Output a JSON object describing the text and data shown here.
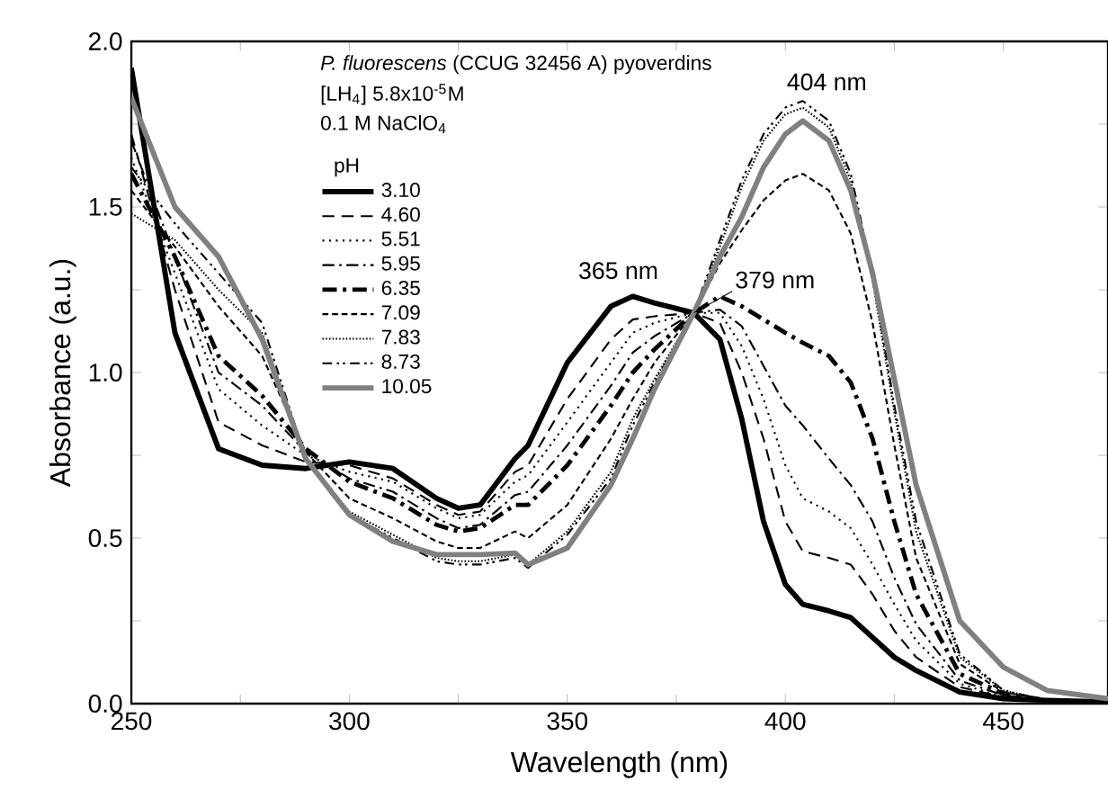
{
  "chart_data": {
    "type": "line",
    "xlabel": "Wavelength (nm)",
    "ylabel": "Absorbance (a.u.)",
    "legend_title": "pH",
    "legend": "top left",
    "grid": false,
    "xlim": [
      250,
      474
    ],
    "ylim": [
      0,
      2.0
    ],
    "xticks": [
      250,
      {
        "value": 275,
        "label": null
      },
      300,
      {
        "value": 325,
        "label": null
      },
      350,
      {
        "value": 375,
        "label": null
      },
      400,
      {
        "value": 425,
        "label": null
      },
      450
    ],
    "yticks": [
      {
        "value": 0,
        "label": "0.0"
      },
      {
        "value": 0.25,
        "label": null
      },
      {
        "value": 0.5,
        "label": "0.5"
      },
      {
        "value": 0.75,
        "label": null
      },
      {
        "value": 1.0,
        "label": "1.0"
      },
      {
        "value": 1.25,
        "label": null
      },
      {
        "value": 1.5,
        "label": "1.5"
      },
      {
        "value": 1.75,
        "label": null
      },
      {
        "value": 2.0,
        "label": "2.0"
      }
    ],
    "x": [
      250,
      260,
      270,
      280,
      290,
      300,
      310,
      320,
      325,
      330,
      338,
      341,
      350,
      360,
      365,
      370,
      379,
      385,
      390,
      395,
      400,
      404,
      410,
      415,
      420,
      425,
      430,
      440,
      450,
      460,
      474
    ],
    "series": [
      {
        "name": "3.10",
        "color": "#000000",
        "line_style": "solid",
        "values": [
          1.92,
          1.12,
          0.77,
          0.72,
          0.71,
          0.73,
          0.71,
          0.62,
          0.59,
          0.6,
          0.74,
          0.78,
          1.03,
          1.2,
          1.23,
          1.21,
          1.18,
          1.1,
          0.86,
          0.55,
          0.36,
          0.3,
          0.28,
          0.26,
          0.2,
          0.14,
          0.1,
          0.035,
          0.015,
          0.01,
          0.005
        ]
      },
      {
        "name": "4.60",
        "color": "#000000",
        "line_style": "dashed",
        "values": [
          1.72,
          1.25,
          0.85,
          0.78,
          0.73,
          0.72,
          0.68,
          0.6,
          0.57,
          0.58,
          0.7,
          0.72,
          0.92,
          1.1,
          1.16,
          1.17,
          1.18,
          1.15,
          1.0,
          0.8,
          0.55,
          0.46,
          0.44,
          0.42,
          0.33,
          0.22,
          0.14,
          0.05,
          0.02,
          0.01,
          0.005
        ]
      },
      {
        "name": "5.51",
        "color": "#000000",
        "line_style": "dotted",
        "values": [
          1.65,
          1.3,
          0.95,
          0.84,
          0.75,
          0.7,
          0.67,
          0.59,
          0.56,
          0.57,
          0.67,
          0.69,
          0.85,
          1.03,
          1.12,
          1.15,
          1.18,
          1.18,
          1.08,
          0.92,
          0.72,
          0.62,
          0.58,
          0.53,
          0.42,
          0.3,
          0.19,
          0.06,
          0.02,
          0.01,
          0.005
        ]
      },
      {
        "name": "5.95",
        "color": "#000000",
        "line_style": "dashdot",
        "values": [
          1.7,
          1.35,
          1.0,
          0.9,
          0.76,
          0.68,
          0.64,
          0.56,
          0.53,
          0.54,
          0.63,
          0.64,
          0.78,
          0.96,
          1.06,
          1.11,
          1.18,
          1.19,
          1.14,
          1.02,
          0.9,
          0.84,
          0.74,
          0.66,
          0.55,
          0.38,
          0.24,
          0.07,
          0.025,
          0.01,
          0.005
        ]
      },
      {
        "name": "6.35",
        "color": "#000000",
        "line_style": "loosely dashdot",
        "values": [
          1.6,
          1.35,
          1.05,
          0.93,
          0.77,
          0.67,
          0.62,
          0.54,
          0.52,
          0.53,
          0.6,
          0.6,
          0.72,
          0.9,
          1.0,
          1.07,
          1.18,
          1.23,
          1.2,
          1.16,
          1.12,
          1.09,
          1.05,
          0.97,
          0.8,
          0.55,
          0.33,
          0.09,
          0.03,
          0.01,
          0.005
        ]
      },
      {
        "name": "7.09",
        "color": "#000000",
        "line_style": "densely dashed",
        "values": [
          1.55,
          1.38,
          1.2,
          1.05,
          0.76,
          0.62,
          0.56,
          0.49,
          0.47,
          0.47,
          0.52,
          0.5,
          0.6,
          0.8,
          0.92,
          1.03,
          1.18,
          1.33,
          1.43,
          1.52,
          1.58,
          1.6,
          1.55,
          1.42,
          1.15,
          0.78,
          0.44,
          0.12,
          0.035,
          0.01,
          0.005
        ]
      },
      {
        "name": "7.83",
        "color": "#000000",
        "line_style": "densely dotted",
        "values": [
          1.48,
          1.4,
          1.25,
          1.12,
          0.74,
          0.58,
          0.51,
          0.44,
          0.43,
          0.43,
          0.45,
          0.42,
          0.52,
          0.7,
          0.86,
          0.98,
          1.18,
          1.38,
          1.56,
          1.7,
          1.78,
          1.8,
          1.74,
          1.58,
          1.28,
          0.88,
          0.52,
          0.14,
          0.04,
          0.01,
          0.005
        ]
      },
      {
        "name": "8.73",
        "color": "#000000",
        "line_style": "dashdotdot",
        "values": [
          1.62,
          1.45,
          1.3,
          1.15,
          0.74,
          0.57,
          0.5,
          0.43,
          0.42,
          0.42,
          0.44,
          0.41,
          0.51,
          0.68,
          0.84,
          0.97,
          1.18,
          1.4,
          1.58,
          1.72,
          1.8,
          1.82,
          1.76,
          1.6,
          1.3,
          0.9,
          0.55,
          0.15,
          0.04,
          0.01,
          0.005
        ]
      },
      {
        "name": "10.05",
        "color": "#808080",
        "line_style": "solid",
        "values": [
          1.83,
          1.5,
          1.35,
          1.1,
          0.74,
          0.57,
          0.49,
          0.45,
          0.45,
          0.45,
          0.455,
          0.42,
          0.47,
          0.66,
          0.8,
          0.95,
          1.18,
          1.35,
          1.47,
          1.62,
          1.72,
          1.76,
          1.7,
          1.55,
          1.3,
          0.98,
          0.66,
          0.25,
          0.11,
          0.04,
          0.015
        ]
      }
    ],
    "annotations": [
      "*P. fluorescens* (CCUG 32456 A) pyoverdins",
      "[LH$_{4}$] 5.8x10$^{-5}$M",
      "0.1 M NaClO$_{4}$",
      {
        "text": "365 nm",
        "x": 365,
        "y": 1.23
      },
      {
        "text": "379 nm",
        "x": 379,
        "y": 1.18
      },
      {
        "text": "404 nm",
        "x": 404,
        "y": 1.8
      }
    ]
  }
}
